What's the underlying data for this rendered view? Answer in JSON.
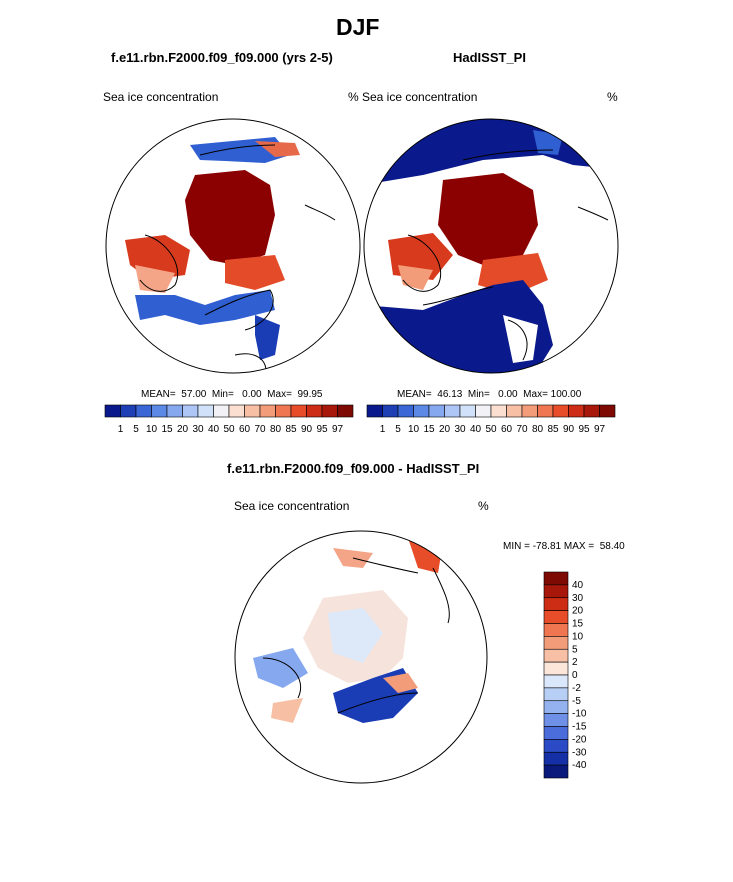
{
  "page": {
    "season": "DJF",
    "model_title": "f.e11.rbn.F2000.f09_f09.000 (yrs 2-5)",
    "obs_title": "HadISST_PI",
    "diff_title": "f.e11.rbn.F2000.f09_f09.000 - HadISST_PI"
  },
  "panels": {
    "model": {
      "variable": "Sea ice concentration",
      "units": "%",
      "stats": "MEAN=  57.00  Min=   0.00  Max=  99.95"
    },
    "obs": {
      "variable": "Sea ice concentration",
      "units": "%",
      "stats": "MEAN=  46.13  Min=   0.00  Max= 100.00"
    },
    "diff": {
      "variable": "Sea ice concentration",
      "units": "%",
      "stats": "MIN = -78.81 MAX =  58.40"
    }
  },
  "colorbar_abs": {
    "labels": [
      "1",
      "5",
      "10",
      "15",
      "20",
      "30",
      "40",
      "50",
      "60",
      "70",
      "80",
      "85",
      "90",
      "95",
      "97"
    ],
    "colors": [
      "#0a1a8c",
      "#1f3fb5",
      "#3a66d6",
      "#5c88e6",
      "#86a8ef",
      "#aec6f5",
      "#d2e1fa",
      "#f2f2f6",
      "#fbe0d2",
      "#f7c0a5",
      "#f39c7a",
      "#ef7650",
      "#e84d2a",
      "#cc2d14",
      "#a8180a",
      "#7e0a04"
    ]
  },
  "colorbar_diff": {
    "labels": [
      "40",
      "30",
      "20",
      "15",
      "10",
      "5",
      "2",
      "0",
      "-2",
      "-5",
      "-10",
      "-15",
      "-20",
      "-30",
      "-40"
    ],
    "colors": [
      "#7e0a04",
      "#a8180a",
      "#cc2d14",
      "#e84d2a",
      "#ef7650",
      "#f39c7a",
      "#f7c0a5",
      "#fbe6d9",
      "#dbe7fa",
      "#b8cff5",
      "#93b2ef",
      "#6e91e7",
      "#4b6ddc",
      "#2b4bc6",
      "#1530a6",
      "#0a1a7c"
    ]
  },
  "map_colors": {
    "ice_full": "#8b0000",
    "ice_edge_red": "#e44b28",
    "ice_light": "#f7c0a5",
    "ice_blue": "#2050c8",
    "ocean_dark": "#0a1a8c",
    "land_outline": "#000000"
  }
}
